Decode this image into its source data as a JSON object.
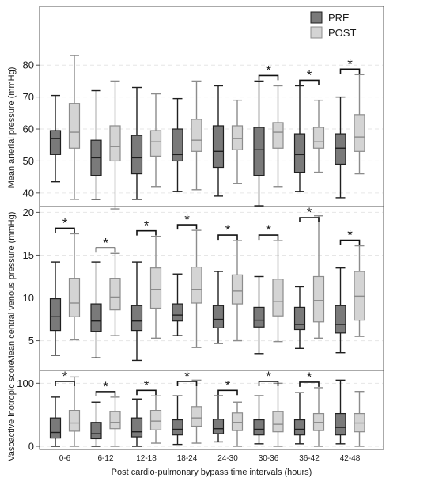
{
  "chart_data": {
    "type": "boxplot",
    "legend": {
      "placement": "top-right",
      "entries": [
        {
          "label": "PRE",
          "color": "#7a7a7a"
        },
        {
          "label": "POST",
          "color": "#d4d4d4"
        }
      ]
    },
    "colors": {
      "pre": "#7a7a7a",
      "post": "#d4d4d4",
      "frame": "#555555",
      "grid": "#e6e6e6"
    },
    "xlabel": "Post cardio-pulmonary bypass time intervals (hours)",
    "categories": [
      "0-6",
      "6-12",
      "12-18",
      "18-24",
      "24-30",
      "30-36",
      "36-42",
      "42-48"
    ],
    "grid": "horizontal dashed",
    "panels": [
      {
        "ylabel": "Mean arterial pressure (mmHg)",
        "ylim": [
          36,
          85
        ],
        "yticks": [
          40,
          50,
          60,
          70,
          80
        ],
        "significant": [
          false,
          false,
          false,
          false,
          false,
          true,
          true,
          true
        ],
        "series": [
          {
            "name": "PRE",
            "boxes": [
              [
                43.5,
                52,
                57,
                59.5,
                70.5
              ],
              [
                38,
                45.5,
                51,
                56.5,
                72
              ],
              [
                38,
                46,
                51,
                58,
                73
              ],
              [
                40.5,
                50,
                52,
                60,
                69.5
              ],
              [
                39,
                48,
                53,
                61,
                73.5
              ],
              [
                36,
                45.5,
                53.5,
                60.5,
                75
              ],
              [
                40.5,
                46.5,
                52,
                58.5,
                73.5
              ],
              [
                38.5,
                49,
                54,
                58.5,
                70
              ]
            ]
          },
          {
            "name": "POST",
            "boxes": [
              [
                38,
                54,
                59,
                68,
                83
              ],
              [
                35,
                50,
                54.5,
                61,
                75
              ],
              [
                42,
                51.5,
                56,
                59.5,
                71
              ],
              [
                41,
                53,
                56.5,
                63,
                75
              ],
              [
                43,
                53.5,
                57,
                61,
                69
              ],
              [
                42,
                54,
                59,
                62,
                73.5
              ],
              [
                46.5,
                54,
                56,
                60.5,
                69
              ],
              [
                46,
                53,
                57.5,
                64.5,
                77
              ]
            ]
          }
        ]
      },
      {
        "ylabel": "Mean central venous pressure (mmHg)",
        "ylim": [
          2,
          20.5
        ],
        "yticks": [
          5,
          10,
          15,
          20
        ],
        "significant": [
          true,
          true,
          true,
          true,
          true,
          true,
          true,
          true
        ],
        "series": [
          {
            "name": "PRE",
            "boxes": [
              [
                3.3,
                6.2,
                7.8,
                9.9,
                14.2
              ],
              [
                3,
                6.1,
                7.3,
                9.3,
                14.2
              ],
              [
                2.7,
                6.2,
                7.3,
                9.1,
                14.2
              ],
              [
                5.6,
                7.3,
                8,
                9.3,
                12.8
              ],
              [
                4.7,
                6.5,
                7.5,
                9.1,
                13.1
              ],
              [
                3.5,
                6.6,
                7.4,
                8.9,
                12.5
              ],
              [
                4.1,
                6.3,
                6.9,
                8.9,
                11.3
              ],
              [
                3.6,
                5.9,
                6.9,
                9.1,
                13.5
              ]
            ]
          },
          {
            "name": "POST",
            "boxes": [
              [
                5.1,
                7.8,
                9.4,
                12.3,
                17.5
              ],
              [
                5.6,
                8.6,
                10.1,
                12.3,
                15.2
              ],
              [
                5.3,
                8.8,
                11,
                13.5,
                17.2
              ],
              [
                4.2,
                9.4,
                11,
                13.6,
                17.9
              ],
              [
                5,
                9.3,
                10.8,
                12.7,
                16.7
              ],
              [
                4.9,
                7.9,
                9.6,
                12.2,
                16.7
              ],
              [
                5.3,
                7.2,
                9.7,
                12.5,
                19.6
              ],
              [
                5.5,
                7.4,
                10.2,
                13.1,
                16.1
              ]
            ]
          }
        ]
      },
      {
        "ylabel": "Vasoactive inotropic score",
        "ylim": [
          -5,
          118
        ],
        "yticks": [
          0,
          100
        ],
        "significant": [
          true,
          true,
          true,
          true,
          true,
          true,
          true,
          false
        ],
        "series": [
          {
            "name": "PRE",
            "boxes": [
              [
                0,
                13,
                22,
                45,
                78
              ],
              [
                0,
                12,
                20,
                38,
                70
              ],
              [
                0,
                15,
                23,
                45,
                75
              ],
              [
                3,
                18,
                27,
                42,
                80
              ],
              [
                7,
                20,
                28,
                43,
                80
              ],
              [
                4,
                18,
                27,
                42,
                80
              ],
              [
                4,
                18,
                27,
                42,
                85
              ],
              [
                4,
                18,
                30,
                52,
                105
              ]
            ]
          },
          {
            "name": "POST",
            "boxes": [
              [
                0,
                24,
                37,
                57,
                110
              ],
              [
                0,
                28,
                38,
                55,
                78
              ],
              [
                5,
                26,
                40,
                57,
                80
              ],
              [
                5,
                32,
                45,
                63,
                105
              ],
              [
                0,
                25,
                38,
                53,
                70
              ],
              [
                0,
                23,
                35,
                55,
                100
              ],
              [
                0,
                25,
                38,
                52,
                93
              ],
              [
                0,
                23,
                37,
                52,
                87
              ]
            ]
          }
        ]
      }
    ]
  }
}
